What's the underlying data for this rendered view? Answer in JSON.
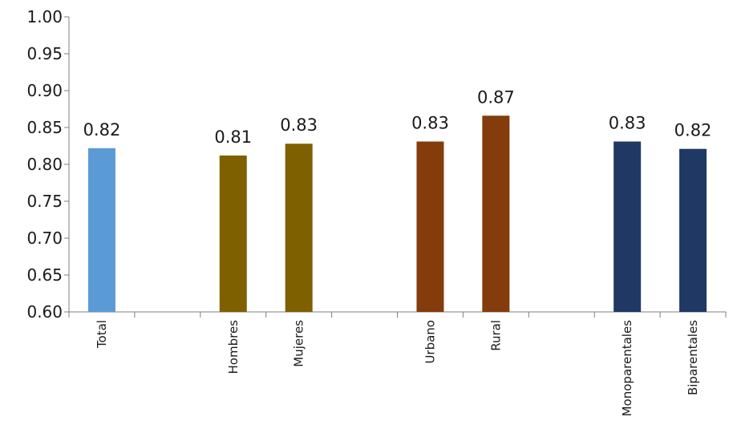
{
  "chart_data": {
    "type": "bar",
    "categories": [
      "Total",
      "",
      "Hombres",
      "Mujeres",
      "",
      "Urbano",
      "Rural",
      "",
      "Monoparentales",
      "Biparentales"
    ],
    "values": [
      0.822,
      null,
      0.812,
      0.828,
      null,
      0.831,
      0.866,
      null,
      0.831,
      0.821
    ],
    "data_labels": [
      "0.82",
      "",
      "0.81",
      "0.83",
      "",
      "0.83",
      "0.87",
      "",
      "0.83",
      "0.82"
    ],
    "colors": [
      "#5B9BD5",
      null,
      "#7F6000",
      "#7F6000",
      null,
      "#843C0C",
      "#843C0C",
      null,
      "#1F3864",
      "#1F3864"
    ],
    "ylim": [
      0.6,
      1.0
    ],
    "yticks": [
      "0.60",
      "0.65",
      "0.70",
      "0.75",
      "0.80",
      "0.85",
      "0.90",
      "0.95",
      "1.00"
    ],
    "title": "",
    "xlabel": "",
    "ylabel": "",
    "grid": false,
    "legend": "none"
  }
}
